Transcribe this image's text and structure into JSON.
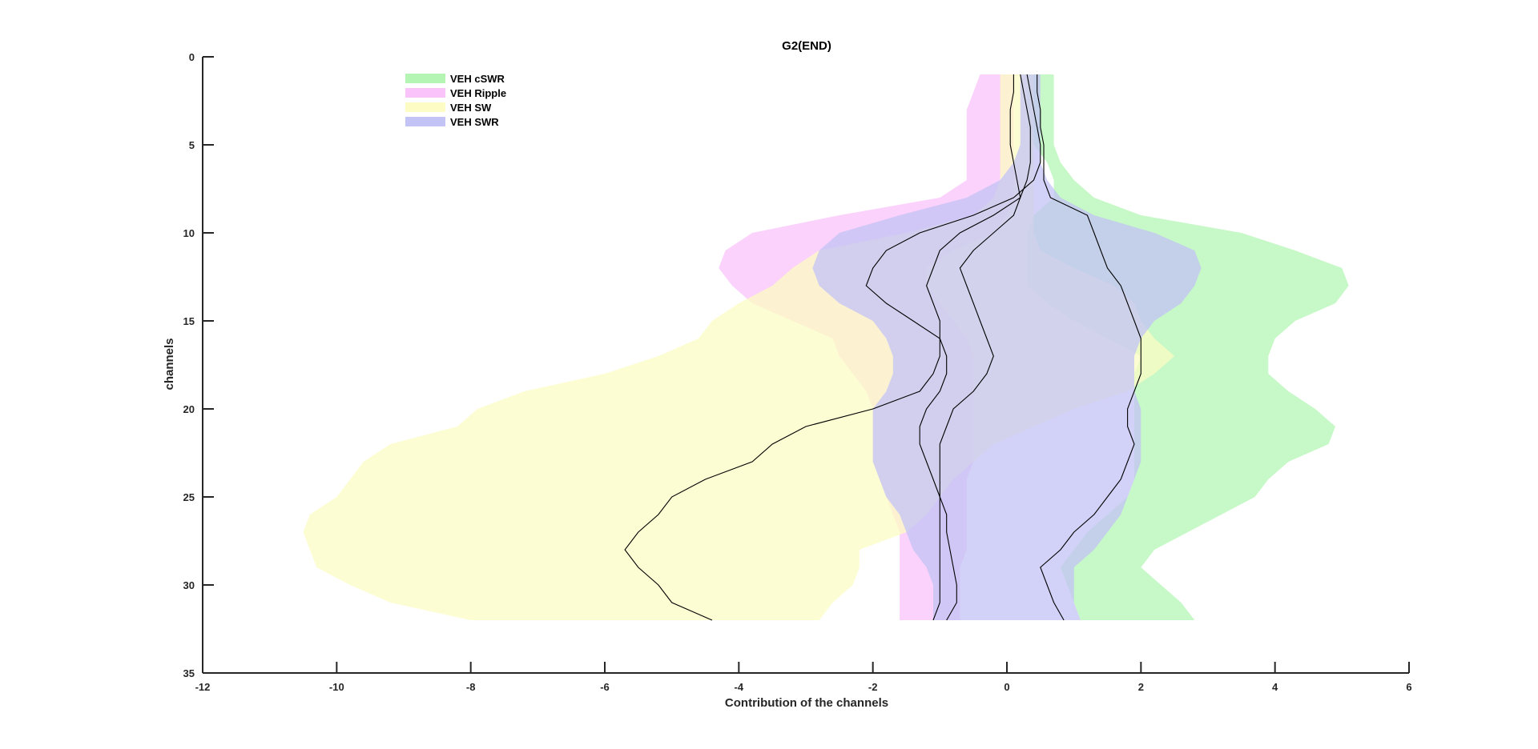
{
  "chart_data": {
    "type": "area",
    "title": "G2(END)",
    "xlabel": "Contribution of the channels",
    "ylabel": "channels",
    "xlim": [
      -12,
      6
    ],
    "ylim": [
      0,
      35
    ],
    "y_reversed": true,
    "x_ticks": [
      "-12",
      "-10",
      "-8",
      "-6",
      "-4",
      "-2",
      "0",
      "2",
      "4",
      "6"
    ],
    "y_ticks": [
      "0",
      "5",
      "10",
      "15",
      "20",
      "25",
      "30",
      "35"
    ],
    "legend_position": "top-left",
    "channels": [
      1,
      2,
      3,
      4,
      5,
      6,
      7,
      8,
      9,
      10,
      11,
      12,
      13,
      14,
      15,
      16,
      17,
      18,
      19,
      20,
      21,
      22,
      23,
      24,
      25,
      26,
      27,
      28,
      29,
      30,
      31,
      32
    ],
    "series": [
      {
        "name": "VEH cSWR",
        "color": "#b4f5b4",
        "lower": [
          0.3,
          0.3,
          0.3,
          0.3,
          0.4,
          0.6,
          0.7,
          0.7,
          0.4,
          0.3,
          0.3,
          0.3,
          0.3,
          0.6,
          1.0,
          1.5,
          2.0,
          1.9,
          1.9,
          1.9,
          1.9,
          1.9,
          1.9,
          1.9,
          1.8,
          1.5,
          1.2,
          1.0,
          0.8,
          0.9,
          1.0,
          1.1
        ],
        "upper": [
          0.7,
          0.7,
          0.7,
          0.7,
          0.7,
          0.8,
          1.0,
          1.3,
          2.0,
          3.5,
          4.3,
          5.0,
          5.1,
          4.9,
          4.3,
          4.0,
          3.9,
          3.9,
          4.2,
          4.6,
          4.9,
          4.8,
          4.2,
          3.9,
          3.7,
          3.2,
          2.7,
          2.2,
          2.0,
          2.3,
          2.6,
          2.8
        ]
      },
      {
        "name": "VEH Ripple",
        "color": "#fac3fa",
        "lower": [
          -0.4,
          -0.5,
          -0.6,
          -0.6,
          -0.6,
          -0.6,
          -0.6,
          -1.0,
          -2.5,
          -3.8,
          -4.2,
          -4.3,
          -4.1,
          -3.8,
          -3.2,
          -2.6,
          -2.5,
          -2.3,
          -2.1,
          -2.0,
          -2.0,
          -2.0,
          -2.0,
          -1.9,
          -1.8,
          -1.7,
          -1.6,
          -1.6,
          -1.6,
          -1.6,
          -1.6,
          -1.6
        ],
        "upper": [
          0.1,
          0.1,
          0.1,
          0.1,
          0.1,
          0.1,
          0.1,
          0.1,
          0.0,
          -0.2,
          -0.8,
          -1.2,
          -1.2,
          -1.0,
          -0.8,
          -0.6,
          -0.5,
          -0.5,
          -0.5,
          -0.5,
          -0.5,
          -0.5,
          -0.5,
          -0.6,
          -0.6,
          -0.6,
          -0.6,
          -0.6,
          -0.7,
          -0.7,
          -0.7,
          -0.7
        ]
      },
      {
        "name": "VEH SW",
        "color": "#fcfcc4",
        "lower": [
          -0.1,
          -0.1,
          -0.1,
          -0.1,
          -0.1,
          -0.1,
          -0.1,
          -0.2,
          -0.5,
          -1.5,
          -2.8,
          -3.2,
          -3.5,
          -4.0,
          -4.4,
          -4.6,
          -5.2,
          -6.0,
          -7.2,
          -7.9,
          -8.2,
          -9.2,
          -9.6,
          -9.8,
          -10.0,
          -10.4,
          -10.5,
          -10.4,
          -10.3,
          -9.8,
          -9.2,
          -8.0
        ],
        "upper": [
          0.4,
          0.4,
          0.4,
          0.4,
          0.4,
          0.4,
          0.4,
          0.4,
          0.4,
          0.4,
          0.5,
          1.0,
          1.6,
          1.9,
          2.0,
          2.2,
          2.5,
          2.2,
          1.8,
          1.0,
          0.4,
          -0.2,
          -0.5,
          -0.8,
          -1.0,
          -1.2,
          -1.5,
          -2.2,
          -2.2,
          -2.3,
          -2.6,
          -2.8
        ]
      },
      {
        "name": "VEH SWR",
        "color": "#c3c3f5",
        "lower": [
          0.2,
          0.2,
          0.2,
          0.2,
          0.2,
          0.1,
          -0.1,
          -0.6,
          -1.6,
          -2.5,
          -2.8,
          -2.9,
          -2.8,
          -2.5,
          -2.0,
          -1.8,
          -1.7,
          -1.7,
          -1.8,
          -2.0,
          -2.0,
          -2.0,
          -2.0,
          -1.9,
          -1.8,
          -1.6,
          -1.5,
          -1.4,
          -1.2,
          -1.1,
          -1.1,
          -1.1
        ],
        "upper": [
          0.5,
          0.5,
          0.5,
          0.5,
          0.5,
          0.5,
          0.6,
          0.8,
          1.3,
          2.2,
          2.8,
          2.9,
          2.8,
          2.6,
          2.2,
          2.0,
          1.9,
          1.9,
          1.9,
          2.0,
          2.0,
          2.0,
          2.0,
          1.9,
          1.8,
          1.7,
          1.5,
          1.3,
          1.0,
          1.0,
          1.0,
          1.1
        ]
      }
    ],
    "mean_lines": [
      {
        "x": [
          0.45,
          0.45,
          0.5,
          0.5,
          0.55,
          0.55,
          0.55,
          0.65,
          1.2,
          1.3,
          1.4,
          1.5,
          1.7,
          1.8,
          1.9,
          2.0,
          2.0,
          2.0,
          1.9,
          1.8,
          1.8,
          1.9,
          1.8,
          1.7,
          1.5,
          1.3,
          1.0,
          0.8,
          0.5,
          0.6,
          0.7,
          0.85
        ]
      },
      {
        "x": [
          0.3,
          0.35,
          0.4,
          0.45,
          0.5,
          0.5,
          0.4,
          0.1,
          -0.5,
          -1.3,
          -1.8,
          -2.0,
          -2.1,
          -1.8,
          -1.4,
          -1.0,
          -1.0,
          -1.1,
          -1.3,
          -2.0,
          -3.0,
          -3.5,
          -3.8,
          -4.5,
          -5.0,
          -5.2,
          -5.5,
          -5.7,
          -5.5,
          -5.2,
          -5.0,
          -4.4
        ]
      },
      {
        "x": [
          0.2,
          0.25,
          0.3,
          0.35,
          0.35,
          0.35,
          0.3,
          0.2,
          -0.2,
          -0.7,
          -1.0,
          -1.1,
          -1.2,
          -1.1,
          -1.0,
          -1.0,
          -0.9,
          -0.9,
          -1.0,
          -1.2,
          -1.3,
          -1.3,
          -1.2,
          -1.1,
          -1.0,
          -0.9,
          -0.9,
          -0.85,
          -0.8,
          -0.75,
          -0.75,
          -0.9
        ]
      },
      {
        "x": [
          0.1,
          0.1,
          0.05,
          0.05,
          0.05,
          0.1,
          0.15,
          0.2,
          0.1,
          -0.2,
          -0.5,
          -0.7,
          -0.6,
          -0.5,
          -0.4,
          -0.3,
          -0.2,
          -0.3,
          -0.5,
          -0.8,
          -0.9,
          -1.0,
          -1.0,
          -1.0,
          -1.0,
          -1.0,
          -1.0,
          -1.0,
          -1.0,
          -1.0,
          -1.0,
          -1.1
        ]
      }
    ]
  }
}
